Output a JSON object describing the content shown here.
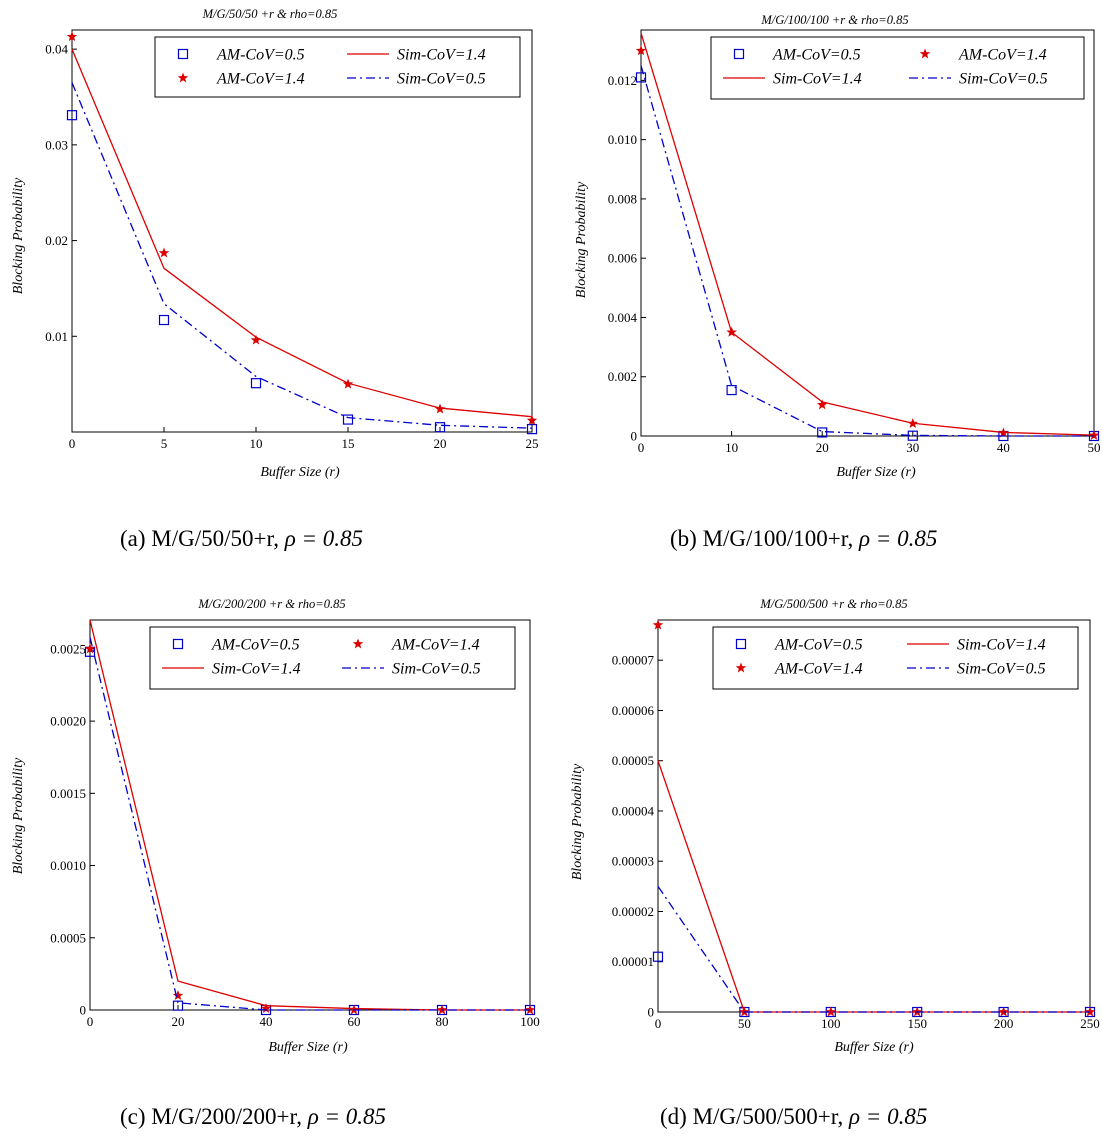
{
  "chart_data": [
    {
      "type": "line",
      "title": "M/G/50/50 +r & rho=0.85",
      "caption": "(a) M/G/50/50+r,",
      "caption_math": "ρ = 0.85",
      "xlabel": "Buffer Size (r)",
      "ylabel": "Blocking Probability",
      "xlim": [
        0,
        25
      ],
      "ylim": [
        0,
        0.042
      ],
      "xticks": [
        0,
        5,
        10,
        15,
        20,
        25
      ],
      "xtick_labels": [
        "0",
        "5",
        "10",
        "15",
        "20",
        "25"
      ],
      "yticks": [
        0.01,
        0.02,
        0.03,
        0.04
      ],
      "ytick_labels": [
        "0.01",
        "0.02",
        "0.03",
        "0.04"
      ],
      "x": [
        0,
        5,
        10,
        15,
        20,
        25
      ],
      "series": [
        {
          "name": "AM-CoV=0.5",
          "style": "square",
          "color": "#0000cc",
          "values": [
            0.0331,
            0.0117,
            0.0051,
            0.0013,
            0.0005,
            0.0003
          ]
        },
        {
          "name": "Sim-CoV=1.4",
          "style": "solid",
          "color": "#dd0000",
          "values": [
            0.04,
            0.0171,
            0.0099,
            0.0051,
            0.0025,
            0.0016
          ]
        },
        {
          "name": "AM-CoV=1.4",
          "style": "star",
          "color": "#dd0000",
          "values": [
            0.0413,
            0.0187,
            0.0096,
            0.005,
            0.0024,
            0.0012
          ]
        },
        {
          "name": "Sim-CoV=0.5",
          "style": "dashdot",
          "color": "#0000cc",
          "values": [
            0.0365,
            0.0134,
            0.0058,
            0.0015,
            0.0007,
            0.0004
          ]
        }
      ],
      "legend_layout": [
        [
          "AM-CoV=0.5",
          "Sim-CoV=1.4"
        ],
        [
          "AM-CoV=1.4",
          "Sim-CoV=0.5"
        ]
      ]
    },
    {
      "type": "line",
      "title": "M/G/100/100 +r & rho=0.85",
      "caption": "(b) M/G/100/100+r,",
      "caption_math": "ρ = 0.85",
      "xlabel": "Buffer Size (r)",
      "ylabel": "Blocking Probability",
      "xlim": [
        0,
        50
      ],
      "ylim": [
        0,
        0.0137
      ],
      "xticks": [
        0,
        10,
        20,
        30,
        40,
        50
      ],
      "xtick_labels": [
        "0",
        "10",
        "20",
        "30",
        "40",
        "50"
      ],
      "yticks": [
        0,
        0.002,
        0.004,
        0.006,
        0.008,
        0.01,
        0.012
      ],
      "ytick_labels": [
        "0",
        "0.002",
        "0.004",
        "0.006",
        "0.008",
        "0.010",
        "0.012"
      ],
      "x": [
        0,
        10,
        20,
        30,
        40,
        50
      ],
      "series": [
        {
          "name": "AM-CoV=0.5",
          "style": "square",
          "color": "#0000cc",
          "values": [
            0.0121,
            0.00155,
            0.00012,
            1e-05,
            0.0,
            0.0
          ]
        },
        {
          "name": "AM-CoV=1.4",
          "style": "star",
          "color": "#dd0000",
          "values": [
            0.013,
            0.0035,
            0.00105,
            0.00042,
            0.0001,
            2e-05
          ]
        },
        {
          "name": "Sim-CoV=1.4",
          "style": "solid",
          "color": "#dd0000",
          "values": [
            0.0136,
            0.0035,
            0.00115,
            0.00043,
            0.00012,
            3e-05
          ]
        },
        {
          "name": "Sim-CoV=0.5",
          "style": "dashdot",
          "color": "#0000cc",
          "values": [
            0.0125,
            0.0017,
            0.00015,
            2e-05,
            0.0,
            0.0
          ]
        }
      ],
      "legend_layout": [
        [
          "AM-CoV=0.5",
          "AM-CoV=1.4"
        ],
        [
          "Sim-CoV=1.4",
          "Sim-CoV=0.5"
        ]
      ]
    },
    {
      "type": "line",
      "title": "M/G/200/200 +r & rho=0.85",
      "caption": "(c) M/G/200/200+r,",
      "caption_math": "ρ = 0.85",
      "xlabel": "Buffer Size (r)",
      "ylabel": "Blocking Probability",
      "xlim": [
        0,
        100
      ],
      "ylim": [
        0,
        0.0027
      ],
      "xticks": [
        0,
        20,
        40,
        60,
        80,
        100
      ],
      "xtick_labels": [
        "0",
        "20",
        "40",
        "60",
        "80",
        "100"
      ],
      "yticks": [
        0,
        0.0005,
        0.001,
        0.0015,
        0.002,
        0.0025
      ],
      "ytick_labels": [
        "0",
        "0.0005",
        "0.0010",
        "0.0015",
        "0.0020",
        "0.0025"
      ],
      "x": [
        0,
        20,
        40,
        60,
        80,
        100
      ],
      "series": [
        {
          "name": "AM-CoV=0.5",
          "style": "square",
          "color": "#0000cc",
          "values": [
            0.00248,
            3e-05,
            0.0,
            0.0,
            0.0,
            0.0
          ]
        },
        {
          "name": "AM-CoV=1.4",
          "style": "star",
          "color": "#dd0000",
          "values": [
            0.0025,
            0.0001,
            1e-05,
            0.0,
            0.0,
            0.0
          ]
        },
        {
          "name": "Sim-CoV=1.4",
          "style": "solid",
          "color": "#dd0000",
          "values": [
            0.0027,
            0.0002,
            3e-05,
            1e-05,
            0.0,
            0.0
          ]
        },
        {
          "name": "Sim-CoV=0.5",
          "style": "dashdot",
          "color": "#0000cc",
          "values": [
            0.00258,
            5e-05,
            0.0,
            0.0,
            0.0,
            0.0
          ]
        }
      ],
      "legend_layout": [
        [
          "AM-CoV=0.5",
          "AM-CoV=1.4"
        ],
        [
          "Sim-CoV=1.4",
          "Sim-CoV=0.5"
        ]
      ]
    },
    {
      "type": "line",
      "title": "M/G/500/500 +r & rho=0.85",
      "caption": "(d) M/G/500/500+r,",
      "caption_math": "ρ = 0.85",
      "xlabel": "Buffer Size (r)",
      "ylabel": "Blocking Probability",
      "xlim": [
        0,
        250
      ],
      "ylim": [
        0,
        7.8e-05
      ],
      "xticks": [
        0,
        50,
        100,
        150,
        200,
        250
      ],
      "xtick_labels": [
        "0",
        "50",
        "100",
        "150",
        "200",
        "250"
      ],
      "yticks": [
        0,
        1e-05,
        2e-05,
        3e-05,
        4e-05,
        5e-05,
        6e-05,
        7e-05
      ],
      "ytick_labels": [
        "0",
        "0.00001",
        "0.00002",
        "0.00003",
        "0.00004",
        "0.00005",
        "0.00006",
        "0.00007"
      ],
      "x": [
        0,
        50,
        100,
        150,
        200,
        250
      ],
      "series": [
        {
          "name": "AM-CoV=0.5",
          "style": "square",
          "color": "#0000cc",
          "values": [
            1.1e-05,
            0.0,
            0.0,
            0.0,
            0.0,
            0.0
          ]
        },
        {
          "name": "Sim-CoV=1.4",
          "style": "solid",
          "color": "#dd0000",
          "values": [
            5e-05,
            0.0,
            0.0,
            0.0,
            0.0,
            0.0
          ]
        },
        {
          "name": "AM-CoV=1.4",
          "style": "star",
          "color": "#dd0000",
          "values": [
            7.7e-05,
            0.0,
            0.0,
            0.0,
            0.0,
            0.0
          ]
        },
        {
          "name": "Sim-CoV=0.5",
          "style": "dashdot",
          "color": "#0000cc",
          "values": [
            2.5e-05,
            0.0,
            0.0,
            0.0,
            0.0,
            0.0
          ]
        }
      ],
      "legend_layout": [
        [
          "AM-CoV=0.5",
          "Sim-CoV=1.4"
        ],
        [
          "AM-CoV=1.4",
          "Sim-CoV=0.5"
        ]
      ]
    }
  ]
}
